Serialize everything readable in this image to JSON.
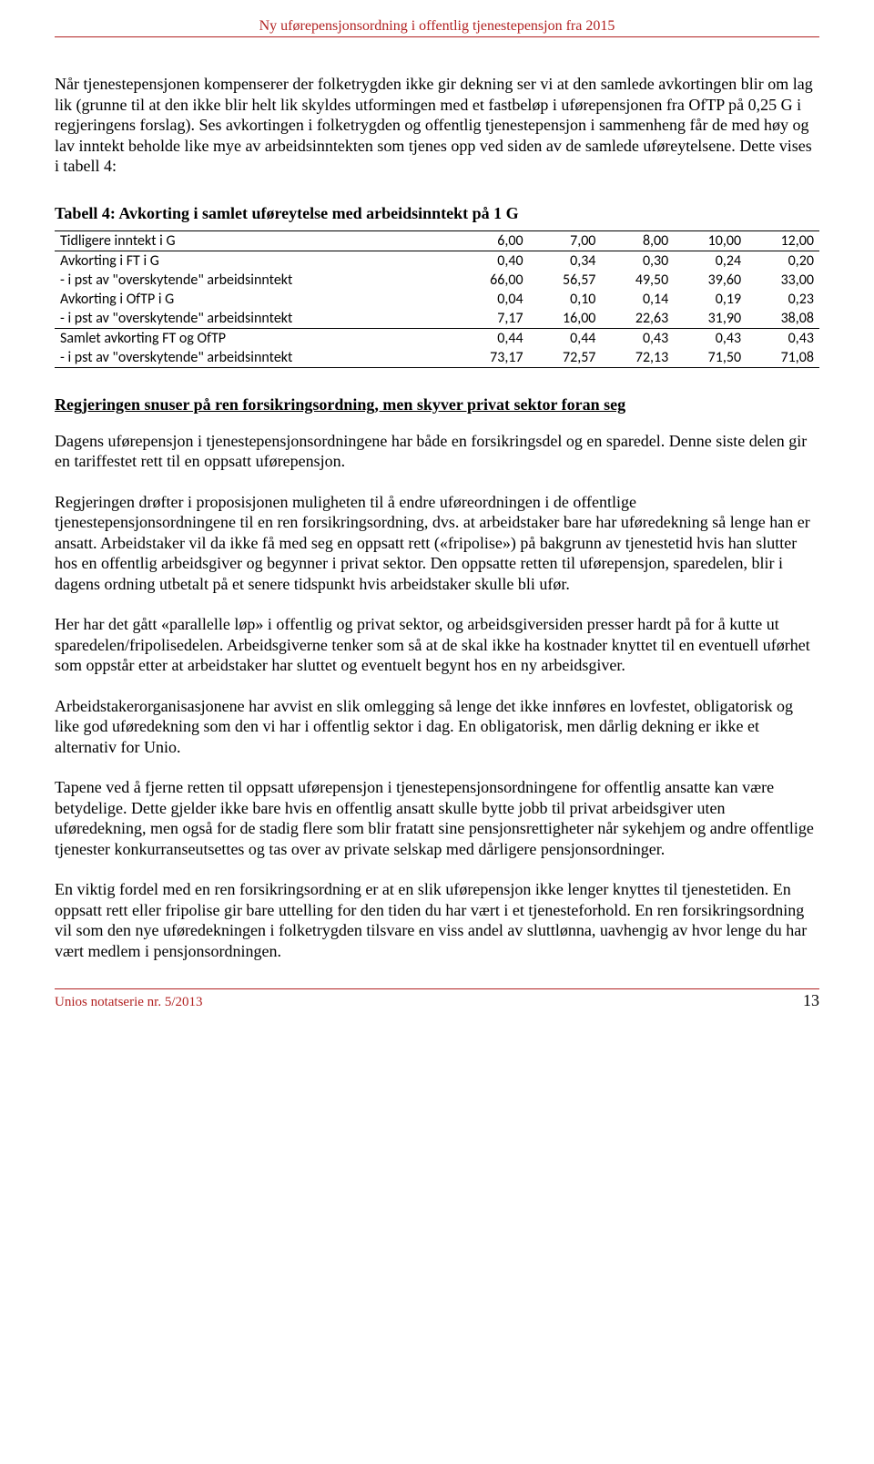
{
  "header": {
    "title": "Ny uførepensjonsordning i offentlig tjenestepensjon fra 2015"
  },
  "paragraphs": {
    "p1": "Når tjenestepensjonen kompenserer der folketrygden ikke gir dekning ser vi at den samlede avkortingen blir om lag lik (grunne til at den ikke blir helt lik skyldes utformingen med et fastbeløp i uførepensjonen fra OfTP på 0,25 G i regjeringens forslag). Ses avkortingen i folketrygden og offentlig tjenestepensjon i sammenheng får de med høy og lav inntekt beholde like mye av arbeidsinntekten som tjenes opp ved siden av de samlede uføreytelsene. Dette vises i tabell 4:",
    "p2": "Dagens uførepensjon i tjenestepensjonsordningene har både en forsikringsdel og en sparedel. Denne siste delen gir en tariffestet rett til en oppsatt uførepensjon.",
    "p3": "Regjeringen drøfter i proposisjonen muligheten til å endre uføreordningen i de offentlige tjenestepensjonsordningene til en ren forsikringsordning, dvs. at arbeidstaker bare har uføredekning så lenge han er ansatt. Arbeidstaker vil da ikke få med seg en oppsatt rett («fripolise») på bakgrunn av tjenestetid hvis han slutter hos en offentlig arbeidsgiver og begynner i privat sektor. Den oppsatte retten til uførepensjon, sparedelen, blir i dagens ordning utbetalt på et senere tidspunkt hvis arbeidstaker skulle bli ufør.",
    "p4": "Her har det gått «parallelle løp» i offentlig og privat sektor, og arbeidsgiversiden presser hardt på for å kutte ut sparedelen/fripolisedelen. Arbeidsgiverne tenker som så at de skal ikke ha kostnader knyttet til en eventuell uførhet som oppstår etter at arbeidstaker har sluttet og eventuelt begynt hos en ny arbeidsgiver.",
    "p5": "Arbeidstakerorganisasjonene har avvist en slik omlegging så lenge det ikke innføres en lovfestet, obligatorisk og like god uføredekning som den vi har i offentlig sektor i dag. En obligatorisk, men dårlig dekning er ikke et alternativ for Unio.",
    "p6": "Tapene ved å fjerne retten til oppsatt uførepensjon i tjenestepensjonsordningene for offentlig ansatte kan være betydelige. Dette gjelder ikke bare hvis en offentlig ansatt skulle bytte jobb til privat arbeidsgiver uten uføredekning, men også for de stadig flere som blir fratatt sine pensjonsrettigheter når sykehjem og andre offentlige tjenester konkurranseutsettes og tas over av private selskap med dårligere pensjonsordninger.",
    "p7": "En viktig fordel med en ren forsikringsordning er at en slik uførepensjon ikke lenger knyttes til tjenestetiden. En oppsatt rett eller fripolise gir bare uttelling for den tiden du har vært i et tjenesteforhold. En ren forsikringsordning vil som den nye uføredekningen i folketrygden tilsvare en viss andel av sluttlønna, uavhengig av hvor lenge du har vært medlem i pensjonsordningen."
  },
  "table4": {
    "title": "Tabell 4: Avkorting i samlet uføreytelse med arbeidsinntekt på 1 G",
    "columns": [
      "Tidligere inntekt i G",
      "6,00",
      "7,00",
      "8,00",
      "10,00",
      "12,00"
    ],
    "rows": [
      {
        "label": "Avkorting i FT i G",
        "vals": [
          "0,40",
          "0,34",
          "0,30",
          "0,24",
          "0,20"
        ]
      },
      {
        "label": " - i pst av \"overskytende\" arbeidsinntekt",
        "vals": [
          "66,00",
          "56,57",
          "49,50",
          "39,60",
          "33,00"
        ]
      },
      {
        "label": "Avkorting i OfTP i G",
        "vals": [
          "0,04",
          "0,10",
          "0,14",
          "0,19",
          "0,23"
        ]
      },
      {
        "label": " - i pst av \"overskytende\" arbeidsinntekt",
        "vals": [
          "7,17",
          "16,00",
          "22,63",
          "31,90",
          "38,08"
        ]
      },
      {
        "label": "Samlet avkorting FT og OfTP",
        "vals": [
          "0,44",
          "0,44",
          "0,43",
          "0,43",
          "0,43"
        ]
      },
      {
        "label": " - i pst av \"overskytende\" arbeidsinntekt",
        "vals": [
          "73,17",
          "72,57",
          "72,13",
          "71,50",
          "71,08"
        ]
      }
    ]
  },
  "section_heading": "Regjeringen snuser på ren forsikringsordning, men skyver privat sektor foran seg",
  "footer": {
    "series": "Unios notatserie nr. 5/2013",
    "page": "13"
  },
  "style": {
    "header_color": "#b22222",
    "body_font": "Times New Roman",
    "table_font": "Calibri",
    "body_fontsize": 18,
    "table_fontsize": 16
  }
}
